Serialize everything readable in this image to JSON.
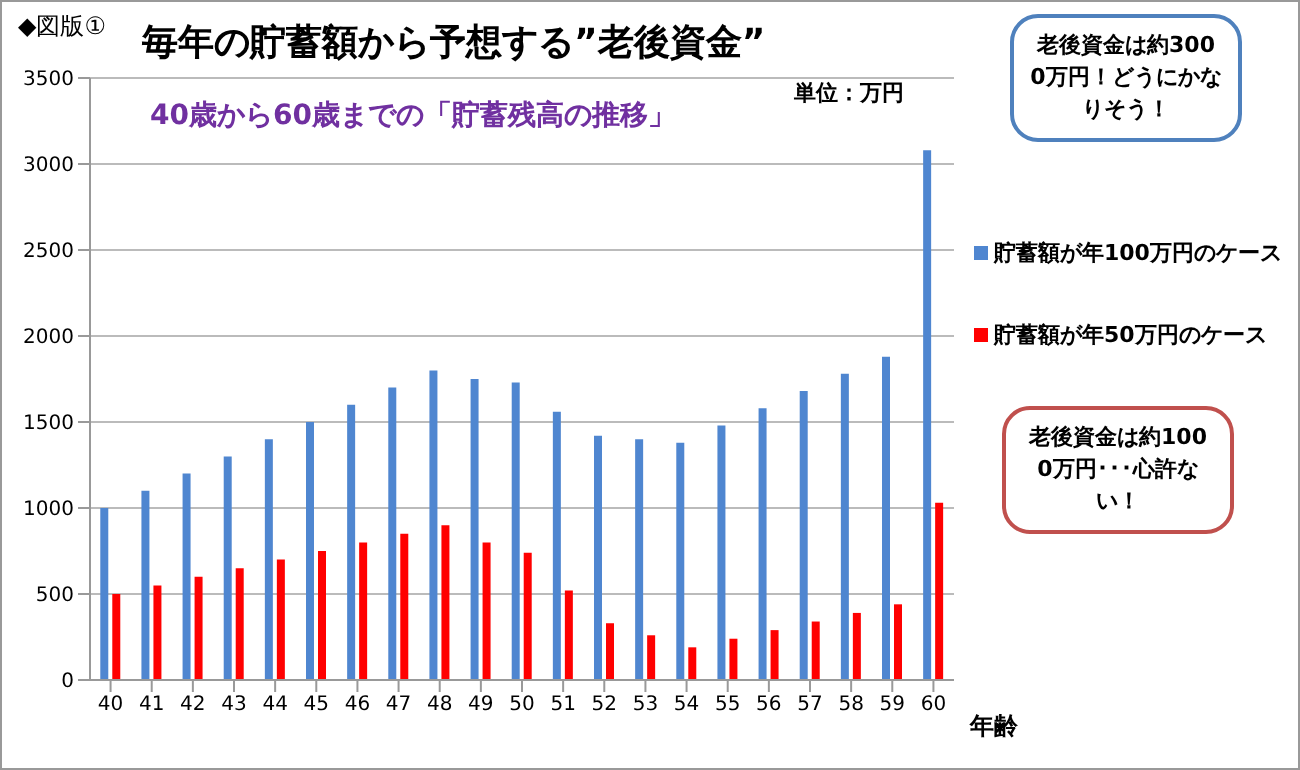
{
  "chart_data": {
    "type": "bar",
    "title": "毎年の貯蓄額から予想する”老後資金”",
    "subtitle": "40歳から60歳までの「貯蓄残高の推移」",
    "xlabel": "年齢",
    "annotations": [
      "◆図版①",
      "単位：万円",
      "老後資金は約3000万円！どうにかなりそう！",
      "老後資金は約1000万円･･･心許ない！"
    ],
    "categories": [
      "40",
      "41",
      "42",
      "43",
      "44",
      "45",
      "46",
      "47",
      "48",
      "49",
      "50",
      "51",
      "52",
      "53",
      "54",
      "55",
      "56",
      "57",
      "58",
      "59",
      "60"
    ],
    "series": [
      {
        "name": "貯蓄額が年100万円のケース",
        "color": "#4f86d0",
        "values": [
          1000,
          1100,
          1200,
          1300,
          1400,
          1500,
          1600,
          1700,
          1800,
          1750,
          1730,
          1560,
          1420,
          1400,
          1380,
          1480,
          1580,
          1680,
          1780,
          1880,
          3080
        ]
      },
      {
        "name": "貯蓄額が年50万円のケース",
        "color": "#ff0000",
        "values": [
          500,
          550,
          600,
          650,
          700,
          750,
          800,
          850,
          900,
          800,
          740,
          520,
          330,
          260,
          190,
          240,
          290,
          340,
          390,
          440,
          1030
        ]
      }
    ],
    "ylim": [
      0,
      3500
    ],
    "yticks": [
      0,
      500,
      1000,
      1500,
      2000,
      2500,
      3000,
      3500
    ],
    "grid": "y",
    "legend": "right"
  }
}
